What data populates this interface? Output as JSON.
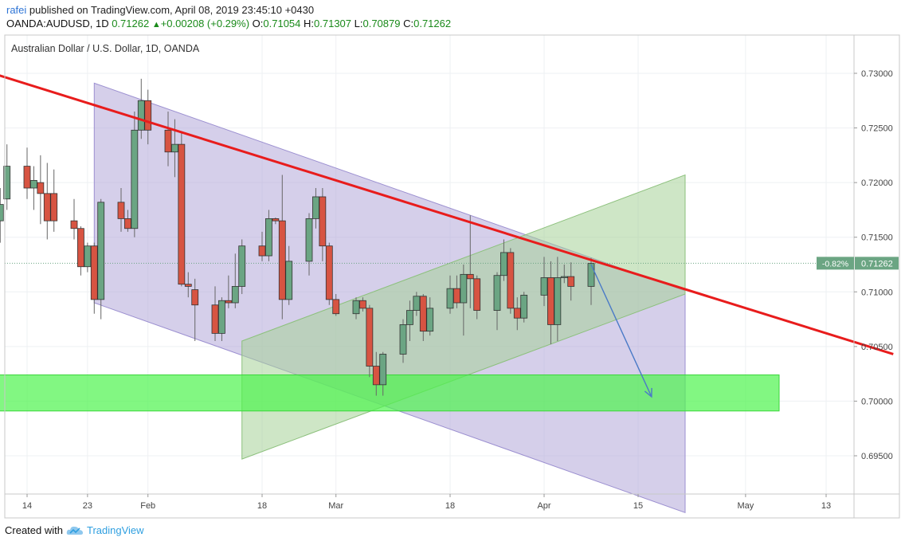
{
  "header": {
    "author": "rafei",
    "published": "published on TradingView.com, April 08, 2019 23:45:10 +0430",
    "symbol": "OANDA:AUDUSD, 1D",
    "last": "0.71262",
    "change": "+0.00208 (+0.29%)",
    "open_label": "O:",
    "open": "0.71054",
    "high_label": "H:",
    "high": "0.71307",
    "low_label": "L:",
    "low": "0.70879",
    "close_label": "C:",
    "close": "0.71262"
  },
  "footer": {
    "created_with": "Created with",
    "brand": "TradingView"
  },
  "chart_data": {
    "type": "candlestick",
    "title": "Australian Dollar / U.S. Dollar, 1D, OANDA",
    "ylim": [
      0.6915,
      0.7335
    ],
    "y_ticks": [
      "0.73000",
      "0.72500",
      "0.72000",
      "0.71500",
      "0.71000",
      "0.70500",
      "0.70000",
      "0.69500"
    ],
    "y_tick_values": [
      0.73,
      0.725,
      0.72,
      0.715,
      0.71,
      0.705,
      0.7,
      0.695
    ],
    "x_tick_labels": [
      "14",
      "23",
      "Feb",
      "18",
      "Mar",
      "18",
      "Apr",
      "15",
      "May",
      "13"
    ],
    "x_tick_dates": [
      "2019-01-14",
      "2019-01-23",
      "2019-02-01",
      "2019-02-18",
      "2019-03-01",
      "2019-03-18",
      "2019-04-01",
      "2019-04-15",
      "2019-05-01",
      "2019-05-13"
    ],
    "last_price_label": "0.71262",
    "last_price_change": "-0.82%",
    "colors": {
      "up": "#6ba583",
      "down": "#d75442",
      "trendline": "#e81c1c",
      "channel": "#b3a8d9",
      "up_channel": "#a6d197",
      "support_zone": "#4df44d",
      "arrow": "#4a7ac7"
    },
    "candles": [
      {
        "d": "2019-01-10",
        "o": 0.7165,
        "h": 0.7195,
        "l": 0.7145,
        "c": 0.718
      },
      {
        "d": "2019-01-11",
        "o": 0.7185,
        "h": 0.7235,
        "l": 0.7175,
        "c": 0.7215
      },
      {
        "d": "2019-01-14",
        "o": 0.7215,
        "h": 0.7232,
        "l": 0.7185,
        "c": 0.7195
      },
      {
        "d": "2019-01-15",
        "o": 0.7195,
        "h": 0.7215,
        "l": 0.7175,
        "c": 0.7202
      },
      {
        "d": "2019-01-16",
        "o": 0.72,
        "h": 0.7225,
        "l": 0.7162,
        "c": 0.719
      },
      {
        "d": "2019-01-17",
        "o": 0.719,
        "h": 0.7218,
        "l": 0.7148,
        "c": 0.7165
      },
      {
        "d": "2019-01-18",
        "o": 0.719,
        "h": 0.7212,
        "l": 0.7155,
        "c": 0.7165
      },
      {
        "d": "2019-01-21",
        "o": 0.7165,
        "h": 0.7185,
        "l": 0.7148,
        "c": 0.7158
      },
      {
        "d": "2019-01-22",
        "o": 0.7158,
        "h": 0.716,
        "l": 0.7115,
        "c": 0.7123
      },
      {
        "d": "2019-01-23",
        "o": 0.7123,
        "h": 0.7145,
        "l": 0.7118,
        "c": 0.7142
      },
      {
        "d": "2019-01-24",
        "o": 0.7142,
        "h": 0.7145,
        "l": 0.708,
        "c": 0.7093
      },
      {
        "d": "2019-01-25",
        "o": 0.7093,
        "h": 0.7185,
        "l": 0.7075,
        "c": 0.7182
      },
      {
        "d": "2019-01-28",
        "o": 0.7182,
        "h": 0.7195,
        "l": 0.7155,
        "c": 0.7167
      },
      {
        "d": "2019-01-29",
        "o": 0.7167,
        "h": 0.7175,
        "l": 0.7155,
        "c": 0.7158
      },
      {
        "d": "2019-01-30",
        "o": 0.7158,
        "h": 0.7265,
        "l": 0.715,
        "c": 0.7248
      },
      {
        "d": "2019-01-31",
        "o": 0.7248,
        "h": 0.7295,
        "l": 0.724,
        "c": 0.7275
      },
      {
        "d": "2019-02-01",
        "o": 0.7275,
        "h": 0.7285,
        "l": 0.7235,
        "c": 0.7248
      },
      {
        "d": "2019-02-04",
        "o": 0.7248,
        "h": 0.7265,
        "l": 0.7215,
        "c": 0.7228
      },
      {
        "d": "2019-02-05",
        "o": 0.7228,
        "h": 0.7258,
        "l": 0.7205,
        "c": 0.7235
      },
      {
        "d": "2019-02-06",
        "o": 0.7235,
        "h": 0.7245,
        "l": 0.7105,
        "c": 0.7107
      },
      {
        "d": "2019-02-07",
        "o": 0.7107,
        "h": 0.7118,
        "l": 0.7095,
        "c": 0.7105
      },
      {
        "d": "2019-02-08",
        "o": 0.7102,
        "h": 0.7112,
        "l": 0.7055,
        "c": 0.7088
      },
      {
        "d": "2019-02-11",
        "o": 0.7088,
        "h": 0.7105,
        "l": 0.7055,
        "c": 0.7062
      },
      {
        "d": "2019-02-12",
        "o": 0.7062,
        "h": 0.7095,
        "l": 0.7055,
        "c": 0.7092
      },
      {
        "d": "2019-02-13",
        "o": 0.7092,
        "h": 0.7115,
        "l": 0.7085,
        "c": 0.709
      },
      {
        "d": "2019-02-14",
        "o": 0.709,
        "h": 0.7135,
        "l": 0.7085,
        "c": 0.7105
      },
      {
        "d": "2019-02-15",
        "o": 0.7105,
        "h": 0.7148,
        "l": 0.7098,
        "c": 0.7142
      },
      {
        "d": "2019-02-18",
        "o": 0.7142,
        "h": 0.7155,
        "l": 0.7128,
        "c": 0.7133
      },
      {
        "d": "2019-02-19",
        "o": 0.7133,
        "h": 0.7175,
        "l": 0.7128,
        "c": 0.7167
      },
      {
        "d": "2019-02-20",
        "o": 0.7167,
        "h": 0.7168,
        "l": 0.7162,
        "c": 0.7165
      },
      {
        "d": "2019-02-21",
        "o": 0.7165,
        "h": 0.7207,
        "l": 0.7075,
        "c": 0.7093
      },
      {
        "d": "2019-02-22",
        "o": 0.7093,
        "h": 0.7142,
        "l": 0.7088,
        "c": 0.7128
      },
      {
        "d": "2019-02-25",
        "o": 0.7128,
        "h": 0.7172,
        "l": 0.7115,
        "c": 0.7167
      },
      {
        "d": "2019-02-26",
        "o": 0.7167,
        "h": 0.7195,
        "l": 0.7158,
        "c": 0.7187
      },
      {
        "d": "2019-02-27",
        "o": 0.7187,
        "h": 0.7195,
        "l": 0.7128,
        "c": 0.7142
      },
      {
        "d": "2019-02-28",
        "o": 0.7142,
        "h": 0.7145,
        "l": 0.7088,
        "c": 0.7093
      },
      {
        "d": "2019-03-01",
        "o": 0.7093,
        "h": 0.7098,
        "l": 0.7078,
        "c": 0.708
      },
      {
        "d": "2019-03-04",
        "o": 0.708,
        "h": 0.7095,
        "l": 0.7075,
        "c": 0.7092
      },
      {
        "d": "2019-03-05",
        "o": 0.7092,
        "h": 0.7095,
        "l": 0.7082,
        "c": 0.7085
      },
      {
        "d": "2019-03-06",
        "o": 0.7085,
        "h": 0.7088,
        "l": 0.7022,
        "c": 0.7032
      },
      {
        "d": "2019-03-07",
        "o": 0.7032,
        "h": 0.7045,
        "l": 0.7005,
        "c": 0.7015
      },
      {
        "d": "2019-03-08",
        "o": 0.7015,
        "h": 0.7045,
        "l": 0.7005,
        "c": 0.7043
      },
      {
        "d": "2019-03-11",
        "o": 0.7043,
        "h": 0.7075,
        "l": 0.7035,
        "c": 0.707
      },
      {
        "d": "2019-03-12",
        "o": 0.707,
        "h": 0.7092,
        "l": 0.7055,
        "c": 0.7083
      },
      {
        "d": "2019-03-13",
        "o": 0.7083,
        "h": 0.71,
        "l": 0.7078,
        "c": 0.7096
      },
      {
        "d": "2019-03-14",
        "o": 0.7096,
        "h": 0.7098,
        "l": 0.7055,
        "c": 0.7064
      },
      {
        "d": "2019-03-15",
        "o": 0.7064,
        "h": 0.7095,
        "l": 0.706,
        "c": 0.7085
      },
      {
        "d": "2019-03-18",
        "o": 0.7085,
        "h": 0.7115,
        "l": 0.708,
        "c": 0.7103
      },
      {
        "d": "2019-03-19",
        "o": 0.7103,
        "h": 0.7115,
        "l": 0.7085,
        "c": 0.709
      },
      {
        "d": "2019-03-20",
        "o": 0.709,
        "h": 0.7125,
        "l": 0.706,
        "c": 0.7116
      },
      {
        "d": "2019-03-21",
        "o": 0.7116,
        "h": 0.717,
        "l": 0.7085,
        "c": 0.7112
      },
      {
        "d": "2019-03-22",
        "o": 0.7112,
        "h": 0.7115,
        "l": 0.7075,
        "c": 0.7083
      },
      {
        "d": "2019-03-25",
        "o": 0.7083,
        "h": 0.7118,
        "l": 0.7065,
        "c": 0.7115
      },
      {
        "d": "2019-03-26",
        "o": 0.7115,
        "h": 0.7148,
        "l": 0.711,
        "c": 0.7136
      },
      {
        "d": "2019-03-27",
        "o": 0.7136,
        "h": 0.714,
        "l": 0.708,
        "c": 0.7085
      },
      {
        "d": "2019-03-28",
        "o": 0.7085,
        "h": 0.7095,
        "l": 0.7065,
        "c": 0.7076
      },
      {
        "d": "2019-03-29",
        "o": 0.7076,
        "h": 0.71,
        "l": 0.7072,
        "c": 0.7097
      },
      {
        "d": "2019-04-01",
        "o": 0.7097,
        "h": 0.7132,
        "l": 0.7087,
        "c": 0.7113
      },
      {
        "d": "2019-04-02",
        "o": 0.7113,
        "h": 0.7128,
        "l": 0.7052,
        "c": 0.707
      },
      {
        "d": "2019-04-03",
        "o": 0.707,
        "h": 0.7132,
        "l": 0.7055,
        "c": 0.7113
      },
      {
        "d": "2019-04-04",
        "o": 0.7113,
        "h": 0.7125,
        "l": 0.7108,
        "c": 0.7114
      },
      {
        "d": "2019-04-05",
        "o": 0.7114,
        "h": 0.7127,
        "l": 0.7092,
        "c": 0.7105
      },
      {
        "d": "2019-04-08",
        "o": 0.7105,
        "h": 0.7131,
        "l": 0.7088,
        "c": 0.7126
      }
    ],
    "drawings": {
      "trendline": [
        [
          "2019-01-01",
          0.7315
        ],
        [
          "2019-05-23",
          0.7043
        ]
      ],
      "falling_channel": [
        [
          "2019-01-24",
          0.7291
        ],
        [
          "2019-04-22",
          0.7101
        ],
        [
          "2019-04-22",
          0.6898
        ],
        [
          "2019-01-24",
          0.709
        ]
      ],
      "rising_channel": [
        [
          "2019-02-15",
          0.7055
        ],
        [
          "2019-04-22",
          0.7207
        ],
        [
          "2019-04-22",
          0.7098
        ],
        [
          "2019-02-15",
          0.6947
        ]
      ],
      "support_zone": {
        "from": "2019-01-01",
        "to": "2019-05-06",
        "y_low": 0.6991,
        "y_high": 0.7024
      },
      "arrow": [
        [
          "2019-04-08",
          0.7125
        ],
        [
          "2019-04-17",
          0.7004
        ]
      ]
    }
  }
}
